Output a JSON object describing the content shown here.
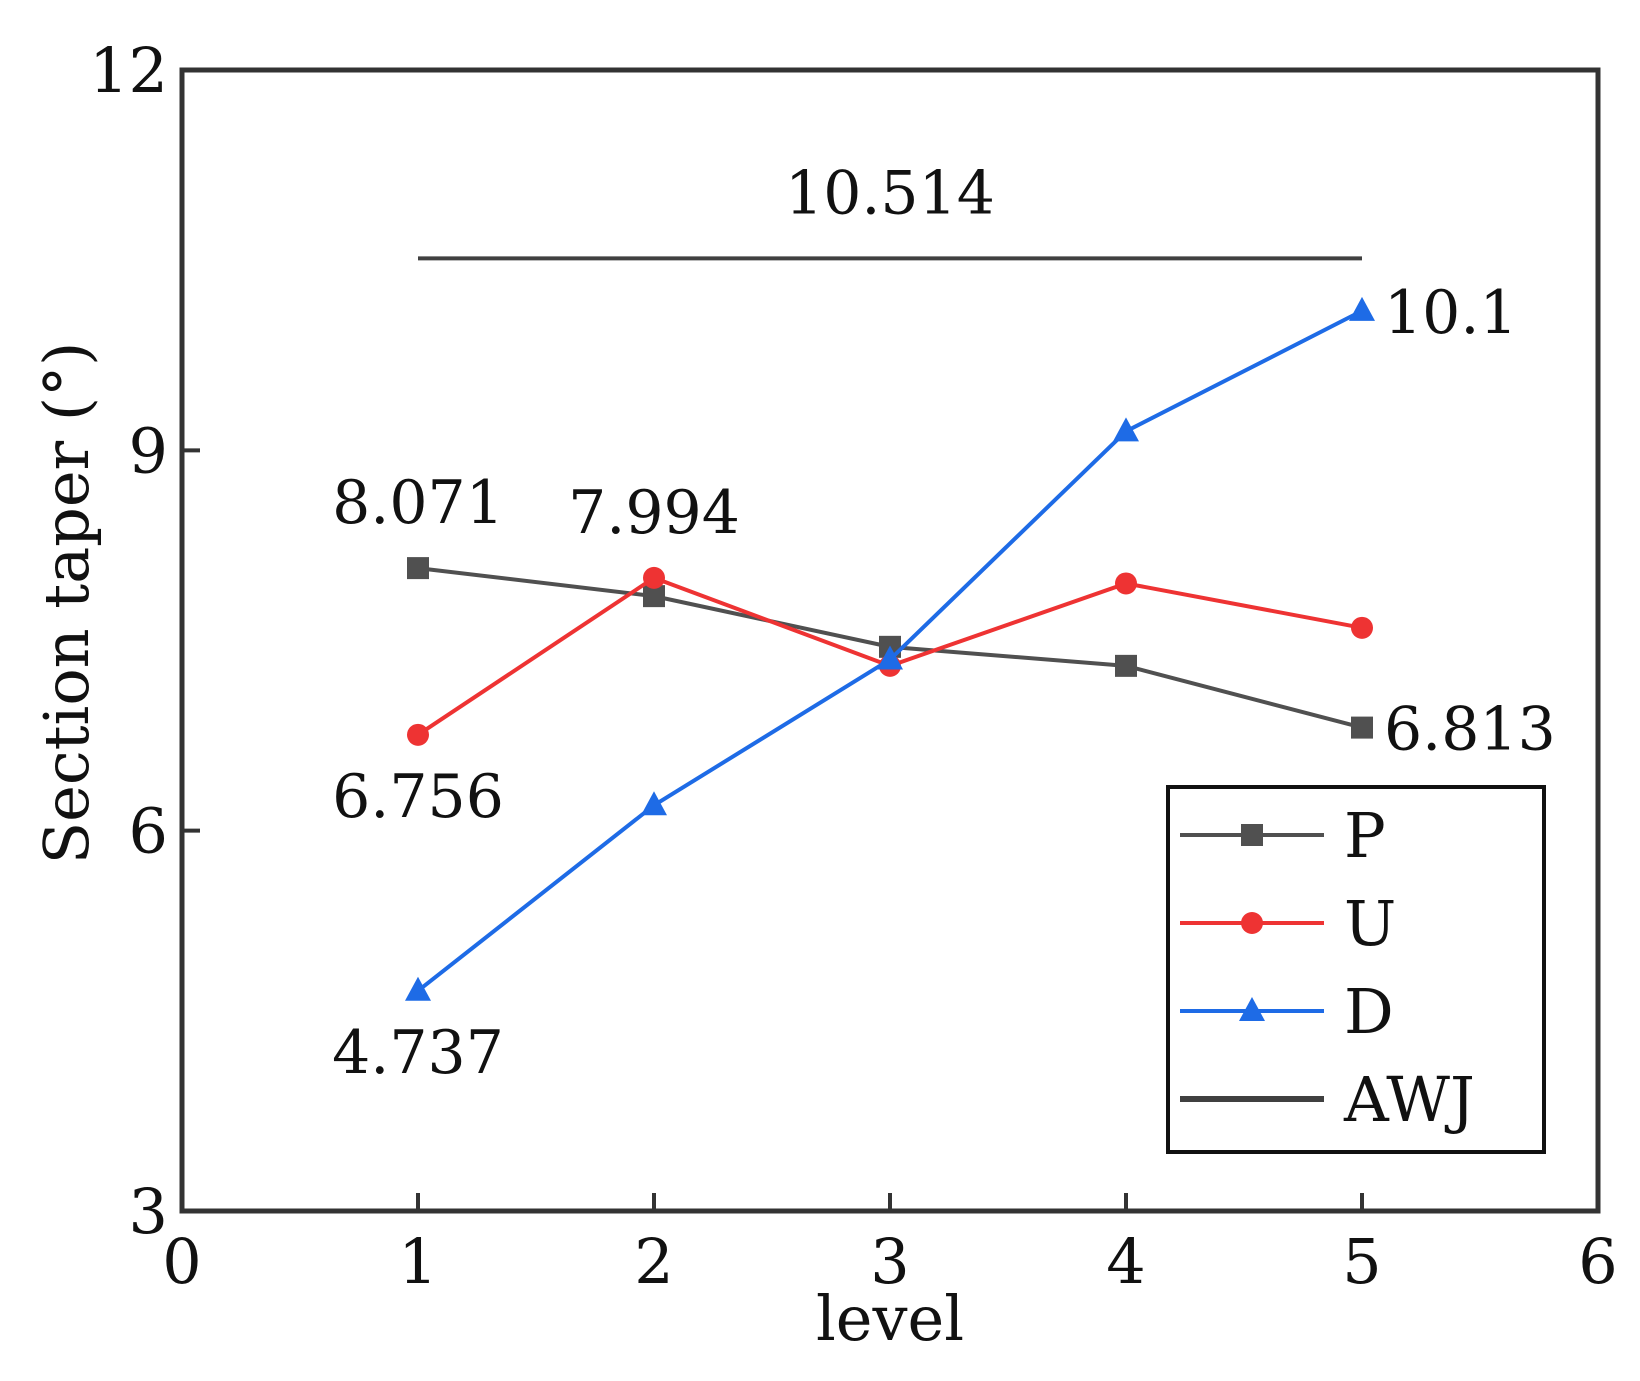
{
  "chart_data": {
    "type": "line",
    "title": "",
    "xlabel": "level",
    "ylabel": "Section taper (°)",
    "xlim": [
      0,
      6
    ],
    "ylim": [
      3,
      12
    ],
    "xticks": [
      0,
      1,
      2,
      3,
      4,
      5,
      6
    ],
    "yticks": [
      3,
      6,
      9,
      12
    ],
    "grid": false,
    "legend_position": "bottom-right",
    "x": [
      1,
      2,
      3,
      4,
      5
    ],
    "series": [
      {
        "name": "P",
        "color": "#505050",
        "marker": "square",
        "values": [
          8.071,
          7.85,
          7.45,
          7.3,
          6.813
        ]
      },
      {
        "name": "U",
        "color": "#ee3333",
        "marker": "circle",
        "values": [
          6.756,
          7.994,
          7.3,
          7.95,
          7.6
        ]
      },
      {
        "name": "D",
        "color": "#1e6be6",
        "marker": "triangle",
        "values": [
          4.737,
          6.2,
          7.35,
          9.15,
          10.1
        ]
      },
      {
        "name": "AWJ",
        "color": "#404040",
        "marker": "none",
        "x": [
          1,
          5
        ],
        "values": [
          10.514,
          10.514
        ]
      }
    ],
    "annotations": [
      {
        "text": "10.514",
        "x": 3,
        "y": 10.514,
        "pos": "above"
      },
      {
        "text": "10.1",
        "x": 5,
        "y": 10.1,
        "pos": "right"
      },
      {
        "text": "8.071",
        "x": 1,
        "y": 8.071,
        "pos": "above"
      },
      {
        "text": "7.994",
        "x": 2,
        "y": 7.994,
        "pos": "above"
      },
      {
        "text": "6.813",
        "x": 5,
        "y": 6.813,
        "pos": "right"
      },
      {
        "text": "6.756",
        "x": 1,
        "y": 6.756,
        "pos": "below"
      },
      {
        "text": "4.737",
        "x": 1,
        "y": 4.737,
        "pos": "below"
      }
    ]
  }
}
